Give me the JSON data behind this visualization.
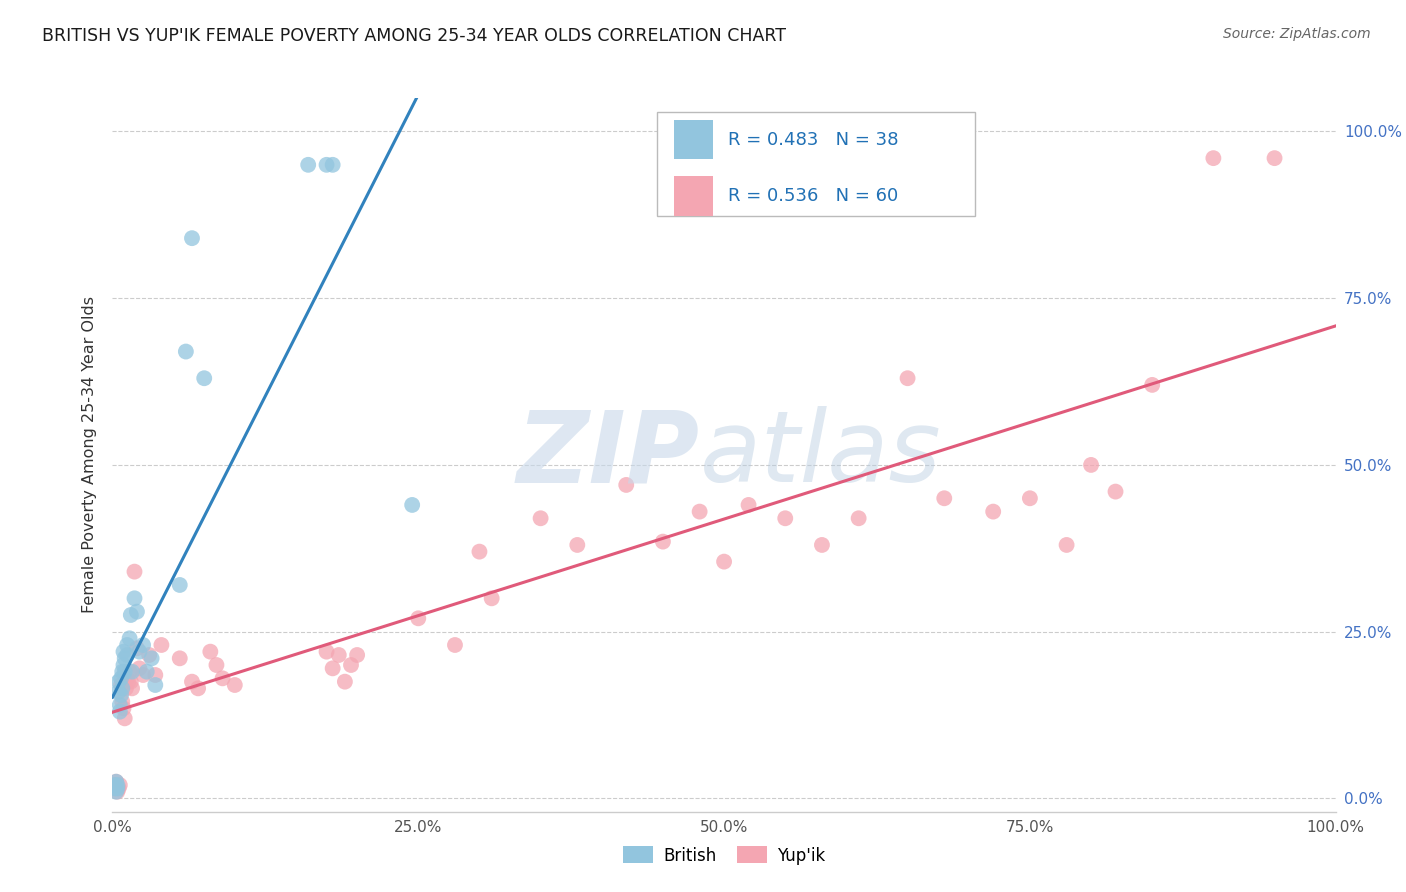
{
  "title": "BRITISH VS YUP'IK FEMALE POVERTY AMONG 25-34 YEAR OLDS CORRELATION CHART",
  "source": "Source: ZipAtlas.com",
  "ylabel": "Female Poverty Among 25-34 Year Olds",
  "xlim": [
    0,
    1.0
  ],
  "ylim": [
    -0.02,
    1.05
  ],
  "xticks": [
    0.0,
    0.25,
    0.5,
    0.75,
    1.0
  ],
  "yticks": [
    0.0,
    0.25,
    0.5,
    0.75,
    1.0
  ],
  "xticklabels": [
    "0.0%",
    "25.0%",
    "50.0%",
    "75.0%",
    "100.0%"
  ],
  "right_yticklabels": [
    "0.0%",
    "25.0%",
    "50.0%",
    "75.0%",
    "100.0%"
  ],
  "british_color": "#92c5de",
  "yupik_color": "#f4a6b2",
  "british_line_color": "#3182bd",
  "yupik_line_color": "#e05a7a",
  "british_R": 0.483,
  "british_N": 38,
  "yupik_R": 0.536,
  "yupik_N": 60,
  "british_x": [
    0.002,
    0.002,
    0.003,
    0.003,
    0.004,
    0.004,
    0.005,
    0.005,
    0.006,
    0.006,
    0.007,
    0.007,
    0.008,
    0.008,
    0.009,
    0.009,
    0.01,
    0.01,
    0.012,
    0.012,
    0.014,
    0.015,
    0.016,
    0.018,
    0.02,
    0.022,
    0.025,
    0.028,
    0.032,
    0.035,
    0.055,
    0.06,
    0.065,
    0.075,
    0.16,
    0.175,
    0.18,
    0.245
  ],
  "british_y": [
    0.02,
    0.015,
    0.025,
    0.01,
    0.015,
    0.02,
    0.175,
    0.16,
    0.14,
    0.13,
    0.155,
    0.18,
    0.19,
    0.165,
    0.2,
    0.22,
    0.19,
    0.21,
    0.215,
    0.23,
    0.24,
    0.275,
    0.19,
    0.3,
    0.28,
    0.22,
    0.23,
    0.19,
    0.21,
    0.17,
    0.32,
    0.67,
    0.84,
    0.63,
    0.95,
    0.95,
    0.95,
    0.44
  ],
  "yupik_x": [
    0.001,
    0.002,
    0.003,
    0.004,
    0.005,
    0.006,
    0.007,
    0.008,
    0.009,
    0.01,
    0.011,
    0.012,
    0.013,
    0.014,
    0.015,
    0.016,
    0.018,
    0.02,
    0.022,
    0.025,
    0.03,
    0.035,
    0.04,
    0.055,
    0.065,
    0.07,
    0.08,
    0.085,
    0.09,
    0.1,
    0.175,
    0.18,
    0.185,
    0.19,
    0.195,
    0.2,
    0.25,
    0.28,
    0.3,
    0.31,
    0.35,
    0.38,
    0.42,
    0.45,
    0.48,
    0.5,
    0.52,
    0.55,
    0.58,
    0.61,
    0.65,
    0.68,
    0.72,
    0.75,
    0.78,
    0.8,
    0.82,
    0.85,
    0.9,
    0.95
  ],
  "yupik_y": [
    0.02,
    0.015,
    0.025,
    0.01,
    0.015,
    0.02,
    0.17,
    0.145,
    0.135,
    0.12,
    0.165,
    0.18,
    0.175,
    0.19,
    0.175,
    0.165,
    0.34,
    0.225,
    0.195,
    0.185,
    0.215,
    0.185,
    0.23,
    0.21,
    0.175,
    0.165,
    0.22,
    0.2,
    0.18,
    0.17,
    0.22,
    0.195,
    0.215,
    0.175,
    0.2,
    0.215,
    0.27,
    0.23,
    0.37,
    0.3,
    0.42,
    0.38,
    0.47,
    0.385,
    0.43,
    0.355,
    0.44,
    0.42,
    0.38,
    0.42,
    0.63,
    0.45,
    0.43,
    0.45,
    0.38,
    0.5,
    0.46,
    0.62,
    0.96,
    0.96
  ]
}
